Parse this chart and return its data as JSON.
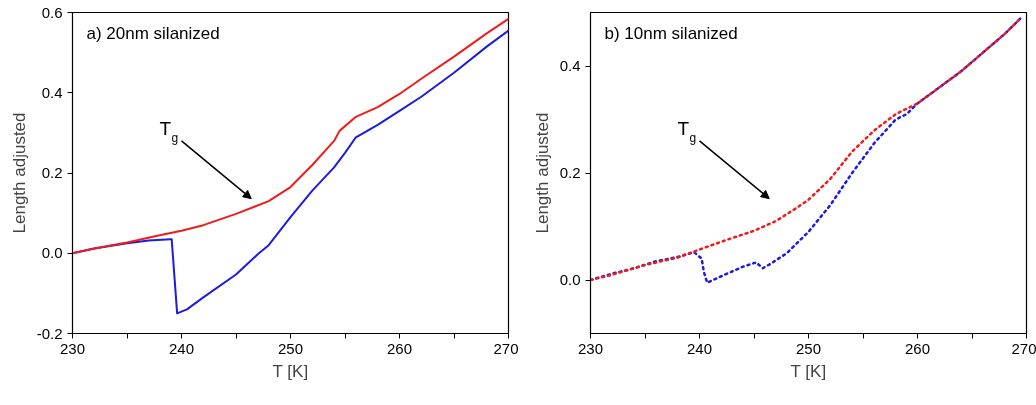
{
  "chart_data": [
    {
      "type": "line",
      "title": "a) 20nm silanized",
      "xlabel": "T [K]",
      "ylabel": "Length adjusted",
      "xlim": [
        230,
        270
      ],
      "ylim": [
        -0.2,
        0.6
      ],
      "xticks": [
        230,
        {
          "value": 235,
          "label": null
        },
        240,
        {
          "value": 245,
          "label": null
        },
        250,
        {
          "value": 255,
          "label": null
        },
        260,
        {
          "value": 265,
          "label": null
        },
        270
      ],
      "yticks": [
        -0.2,
        {
          "value": 0,
          "label": "0.0"
        },
        0.2,
        0.4,
        0.6
      ],
      "grid": false,
      "line_style": "solid",
      "annotations": [
        "T$_{g}$"
      ],
      "series": [
        {
          "color": "#1c1ce0",
          "x": [
            230,
            232,
            235,
            237,
            239,
            239.1,
            239.6,
            240.5,
            242,
            245,
            247.1,
            248,
            250,
            252,
            254,
            255,
            256,
            258,
            260,
            262,
            265,
            268,
            270
          ],
          "values": [
            0,
            0.012,
            0.025,
            0.032,
            0.035,
            0.035,
            -0.15,
            -0.14,
            -0.11,
            -0.053,
            0.0,
            0.02,
            0.09,
            0.156,
            0.214,
            0.25,
            0.289,
            0.32,
            0.355,
            0.39,
            0.45,
            0.515,
            0.555
          ]
        },
        {
          "color": "#ee1c1c",
          "x": [
            230,
            232,
            235,
            238,
            240,
            242,
            245,
            248,
            250,
            252,
            254,
            254.5,
            256,
            258,
            260,
            262,
            265,
            268,
            270
          ],
          "values": [
            0,
            0.012,
            0.027,
            0.045,
            0.056,
            0.07,
            0.098,
            0.13,
            0.165,
            0.22,
            0.28,
            0.305,
            0.34,
            0.364,
            0.397,
            0.435,
            0.49,
            0.548,
            0.584
          ]
        }
      ]
    },
    {
      "type": "line",
      "title": "b) 10nm silanized",
      "xlabel": "T [K]",
      "ylabel": "Length adjusted",
      "xlim": [
        230,
        270
      ],
      "ylim": [
        -0.1,
        0.5
      ],
      "xticks": [
        230,
        {
          "value": 235,
          "label": null
        },
        240,
        {
          "value": 245,
          "label": null
        },
        250,
        {
          "value": 255,
          "label": null
        },
        260,
        {
          "value": 265,
          "label": null
        },
        270
      ],
      "yticks": [
        {
          "value": 0,
          "label": "0.0"
        },
        0.2,
        0.4
      ],
      "grid": false,
      "line_style": "dotted",
      "annotations": [
        "T$_{g}$"
      ],
      "series": [
        {
          "color": "#1c1ce0",
          "x": [
            230,
            232,
            234,
            236,
            238,
            239.5,
            240.2,
            240.4,
            240.7,
            242,
            244,
            245.2,
            245.8,
            246.5,
            248,
            249,
            250,
            252,
            254,
            256,
            258,
            259,
            260,
            262,
            264,
            266,
            268,
            269.5
          ],
          "values": [
            0,
            0.012,
            0.022,
            0.035,
            0.043,
            0.052,
            0.04,
            0.015,
            -0.005,
            0.007,
            0.025,
            0.033,
            0.022,
            0.03,
            0.05,
            0.07,
            0.09,
            0.14,
            0.2,
            0.255,
            0.3,
            0.31,
            0.33,
            0.36,
            0.39,
            0.425,
            0.46,
            0.49
          ]
        },
        {
          "color": "#ee1c1c",
          "x": [
            230,
            232,
            235,
            238,
            240,
            242.5,
            245,
            247,
            249,
            250,
            252,
            254,
            256,
            258,
            260,
            262,
            264,
            266,
            268,
            269.5
          ],
          "values": [
            0,
            0.01,
            0.028,
            0.042,
            0.057,
            0.075,
            0.092,
            0.11,
            0.136,
            0.15,
            0.189,
            0.24,
            0.279,
            0.31,
            0.33,
            0.36,
            0.39,
            0.425,
            0.46,
            0.49
          ]
        }
      ]
    }
  ]
}
